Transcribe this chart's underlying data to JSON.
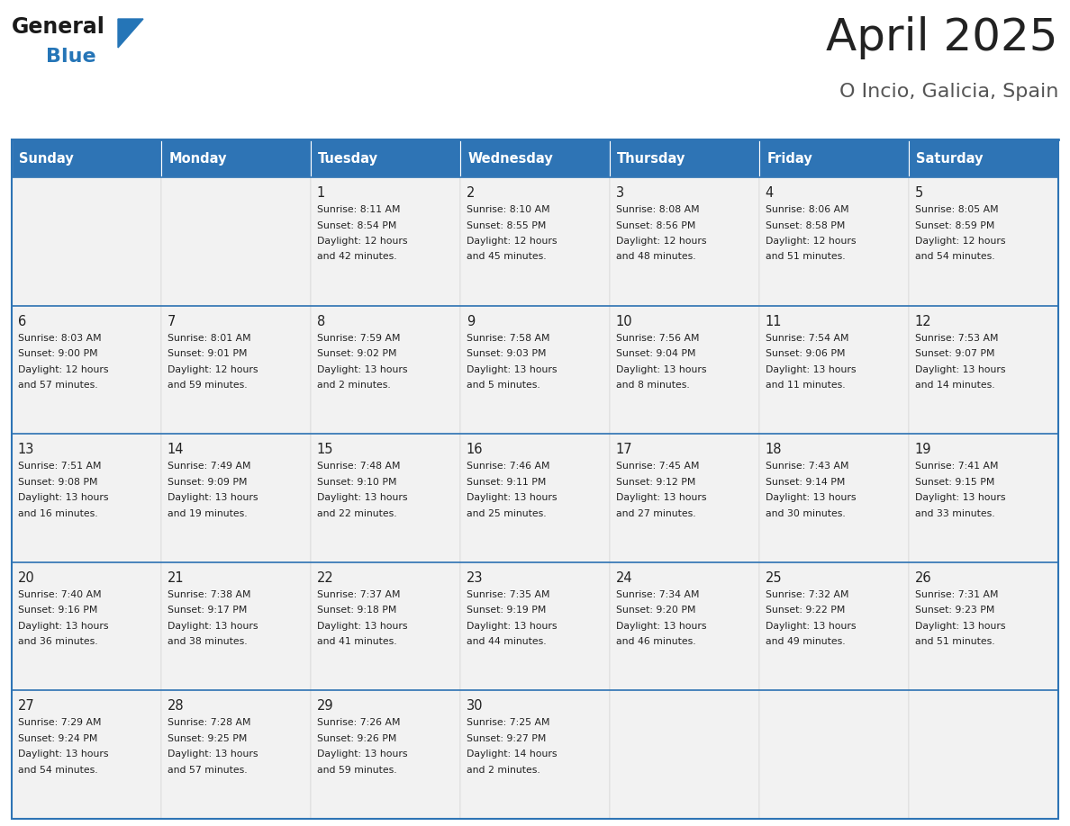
{
  "title": "April 2025",
  "subtitle": "O Incio, Galicia, Spain",
  "days_of_week": [
    "Sunday",
    "Monday",
    "Tuesday",
    "Wednesday",
    "Thursday",
    "Friday",
    "Saturday"
  ],
  "header_bg": "#2e74b5",
  "header_text_color": "#ffffff",
  "cell_bg": "#f2f2f2",
  "separator_color": "#2e74b5",
  "title_color": "#222222",
  "subtitle_color": "#555555",
  "cell_text_color": "#222222",
  "logo_text_color": "#1a1a1a",
  "logo_blue_color": "#2575b7",
  "calendar_data": [
    [
      null,
      null,
      {
        "day": 1,
        "sunrise": "8:11 AM",
        "sunset": "8:54 PM",
        "daylight": "12 hours and 42 minutes."
      },
      {
        "day": 2,
        "sunrise": "8:10 AM",
        "sunset": "8:55 PM",
        "daylight": "12 hours and 45 minutes."
      },
      {
        "day": 3,
        "sunrise": "8:08 AM",
        "sunset": "8:56 PM",
        "daylight": "12 hours and 48 minutes."
      },
      {
        "day": 4,
        "sunrise": "8:06 AM",
        "sunset": "8:58 PM",
        "daylight": "12 hours and 51 minutes."
      },
      {
        "day": 5,
        "sunrise": "8:05 AM",
        "sunset": "8:59 PM",
        "daylight": "12 hours and 54 minutes."
      }
    ],
    [
      {
        "day": 6,
        "sunrise": "8:03 AM",
        "sunset": "9:00 PM",
        "daylight": "12 hours and 57 minutes."
      },
      {
        "day": 7,
        "sunrise": "8:01 AM",
        "sunset": "9:01 PM",
        "daylight": "12 hours and 59 minutes."
      },
      {
        "day": 8,
        "sunrise": "7:59 AM",
        "sunset": "9:02 PM",
        "daylight": "13 hours and 2 minutes."
      },
      {
        "day": 9,
        "sunrise": "7:58 AM",
        "sunset": "9:03 PM",
        "daylight": "13 hours and 5 minutes."
      },
      {
        "day": 10,
        "sunrise": "7:56 AM",
        "sunset": "9:04 PM",
        "daylight": "13 hours and 8 minutes."
      },
      {
        "day": 11,
        "sunrise": "7:54 AM",
        "sunset": "9:06 PM",
        "daylight": "13 hours and 11 minutes."
      },
      {
        "day": 12,
        "sunrise": "7:53 AM",
        "sunset": "9:07 PM",
        "daylight": "13 hours and 14 minutes."
      }
    ],
    [
      {
        "day": 13,
        "sunrise": "7:51 AM",
        "sunset": "9:08 PM",
        "daylight": "13 hours and 16 minutes."
      },
      {
        "day": 14,
        "sunrise": "7:49 AM",
        "sunset": "9:09 PM",
        "daylight": "13 hours and 19 minutes."
      },
      {
        "day": 15,
        "sunrise": "7:48 AM",
        "sunset": "9:10 PM",
        "daylight": "13 hours and 22 minutes."
      },
      {
        "day": 16,
        "sunrise": "7:46 AM",
        "sunset": "9:11 PM",
        "daylight": "13 hours and 25 minutes."
      },
      {
        "day": 17,
        "sunrise": "7:45 AM",
        "sunset": "9:12 PM",
        "daylight": "13 hours and 27 minutes."
      },
      {
        "day": 18,
        "sunrise": "7:43 AM",
        "sunset": "9:14 PM",
        "daylight": "13 hours and 30 minutes."
      },
      {
        "day": 19,
        "sunrise": "7:41 AM",
        "sunset": "9:15 PM",
        "daylight": "13 hours and 33 minutes."
      }
    ],
    [
      {
        "day": 20,
        "sunrise": "7:40 AM",
        "sunset": "9:16 PM",
        "daylight": "13 hours and 36 minutes."
      },
      {
        "day": 21,
        "sunrise": "7:38 AM",
        "sunset": "9:17 PM",
        "daylight": "13 hours and 38 minutes."
      },
      {
        "day": 22,
        "sunrise": "7:37 AM",
        "sunset": "9:18 PM",
        "daylight": "13 hours and 41 minutes."
      },
      {
        "day": 23,
        "sunrise": "7:35 AM",
        "sunset": "9:19 PM",
        "daylight": "13 hours and 44 minutes."
      },
      {
        "day": 24,
        "sunrise": "7:34 AM",
        "sunset": "9:20 PM",
        "daylight": "13 hours and 46 minutes."
      },
      {
        "day": 25,
        "sunrise": "7:32 AM",
        "sunset": "9:22 PM",
        "daylight": "13 hours and 49 minutes."
      },
      {
        "day": 26,
        "sunrise": "7:31 AM",
        "sunset": "9:23 PM",
        "daylight": "13 hours and 51 minutes."
      }
    ],
    [
      {
        "day": 27,
        "sunrise": "7:29 AM",
        "sunset": "9:24 PM",
        "daylight": "13 hours and 54 minutes."
      },
      {
        "day": 28,
        "sunrise": "7:28 AM",
        "sunset": "9:25 PM",
        "daylight": "13 hours and 57 minutes."
      },
      {
        "day": 29,
        "sunrise": "7:26 AM",
        "sunset": "9:26 PM",
        "daylight": "13 hours and 59 minutes."
      },
      {
        "day": 30,
        "sunrise": "7:25 AM",
        "sunset": "9:27 PM",
        "daylight": "14 hours and 2 minutes."
      },
      null,
      null,
      null
    ]
  ]
}
